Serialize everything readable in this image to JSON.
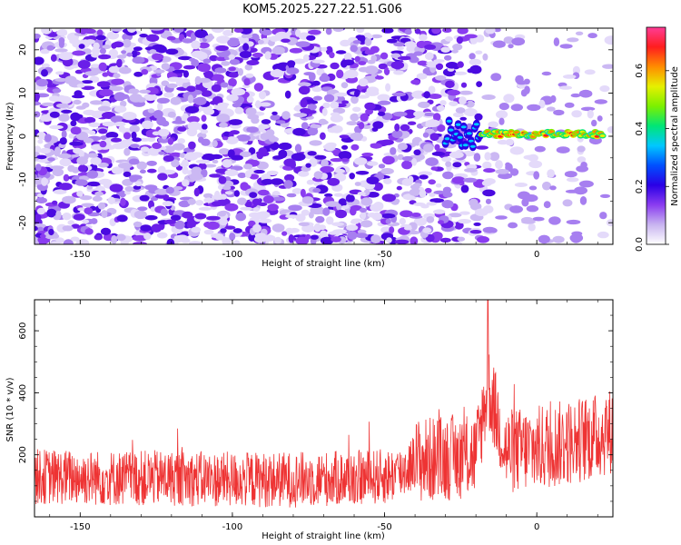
{
  "title": "KOM5.2025.227.22.51.G06",
  "chart_data": [
    {
      "type": "heatmap",
      "title": "KOM5.2025.227.22.51.G06",
      "xlabel": "Height of straight line (km)",
      "ylabel": "Frequency (Hz)",
      "xlim": [
        -165,
        25
      ],
      "ylim": [
        -25,
        25
      ],
      "xticks": [
        "-150",
        "-100",
        "-50",
        "0"
      ],
      "yticks": [
        "-20",
        "-10",
        "0",
        "10",
        "20"
      ],
      "features": [
        {
          "name": "near-zero-frequency echo trace",
          "x_range": [
            -30,
            22
          ],
          "y": 0.5
        },
        {
          "name": "background noise",
          "x_range": [
            -165,
            25
          ],
          "y_range": [
            -25,
            25
          ]
        }
      ],
      "colorbar": {
        "label": "Normalized spectral amplitude",
        "range": [
          0.0,
          0.75
        ],
        "ticks": [
          "0.0",
          "0.2",
          "0.4",
          "0.6"
        ],
        "colors": [
          "#ffffff",
          "#c8b4f0",
          "#8a3cf0",
          "#2a00e6",
          "#0050ff",
          "#00c8ff",
          "#00e676",
          "#7cf000",
          "#e6f000",
          "#ff8c00",
          "#ff1e1e",
          "#ff3c96"
        ]
      }
    },
    {
      "type": "line",
      "xlabel": "Height of straight line (km)",
      "ylabel": "SNR (10 * v/v)",
      "xlim": [
        -165,
        25
      ],
      "ylim": [
        0,
        700
      ],
      "xticks": [
        "-150",
        "-100",
        "-50",
        "0"
      ],
      "yticks": [
        "200",
        "400",
        "600"
      ],
      "series": [
        {
          "name": "SNR",
          "color": "#ee3333",
          "x": [
            -165,
            -140,
            -120,
            -100,
            -80,
            -60,
            -50,
            -45,
            -40,
            -30,
            -20,
            -16,
            -10,
            0,
            10,
            20,
            25
          ],
          "values": [
            130,
            125,
            125,
            120,
            120,
            125,
            130,
            140,
            180,
            190,
            200,
            420,
            210,
            220,
            240,
            260,
            280
          ]
        }
      ]
    }
  ]
}
